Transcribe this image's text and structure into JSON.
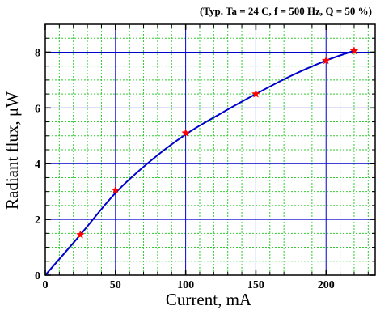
{
  "chart_data": {
    "type": "line",
    "annotation": "(Typ. Ta = 24 C, f = 500 Hz, Q = 50 %)",
    "xlabel": "Current, mA",
    "ylabel": "Radiant flux, μW",
    "xlim": [
      0,
      235
    ],
    "ylim": [
      0,
      9
    ],
    "x_ticks": [
      0,
      50,
      100,
      150,
      200
    ],
    "y_ticks": [
      0,
      2,
      4,
      6,
      8
    ],
    "x_minor_step": 10,
    "y_minor_step": 0.5,
    "grid": true,
    "series": [
      {
        "type": "line",
        "x": [
          0,
          25,
          50,
          75,
          100,
          125,
          150,
          175,
          200,
          220
        ],
        "values": [
          0,
          1.45,
          2.95,
          4.1,
          5.05,
          5.8,
          6.5,
          7.15,
          7.7,
          8.05
        ],
        "color": "#0000cc"
      },
      {
        "type": "scatter",
        "marker": "star",
        "x": [
          25,
          50,
          100,
          150,
          200,
          220
        ],
        "values": [
          1.45,
          3.05,
          5.1,
          6.5,
          7.7,
          8.05
        ],
        "color": "#ff0000"
      }
    ],
    "colors": {
      "major_grid": "#0000cc",
      "minor_grid": "#33cc33",
      "axis": "#000000"
    }
  }
}
